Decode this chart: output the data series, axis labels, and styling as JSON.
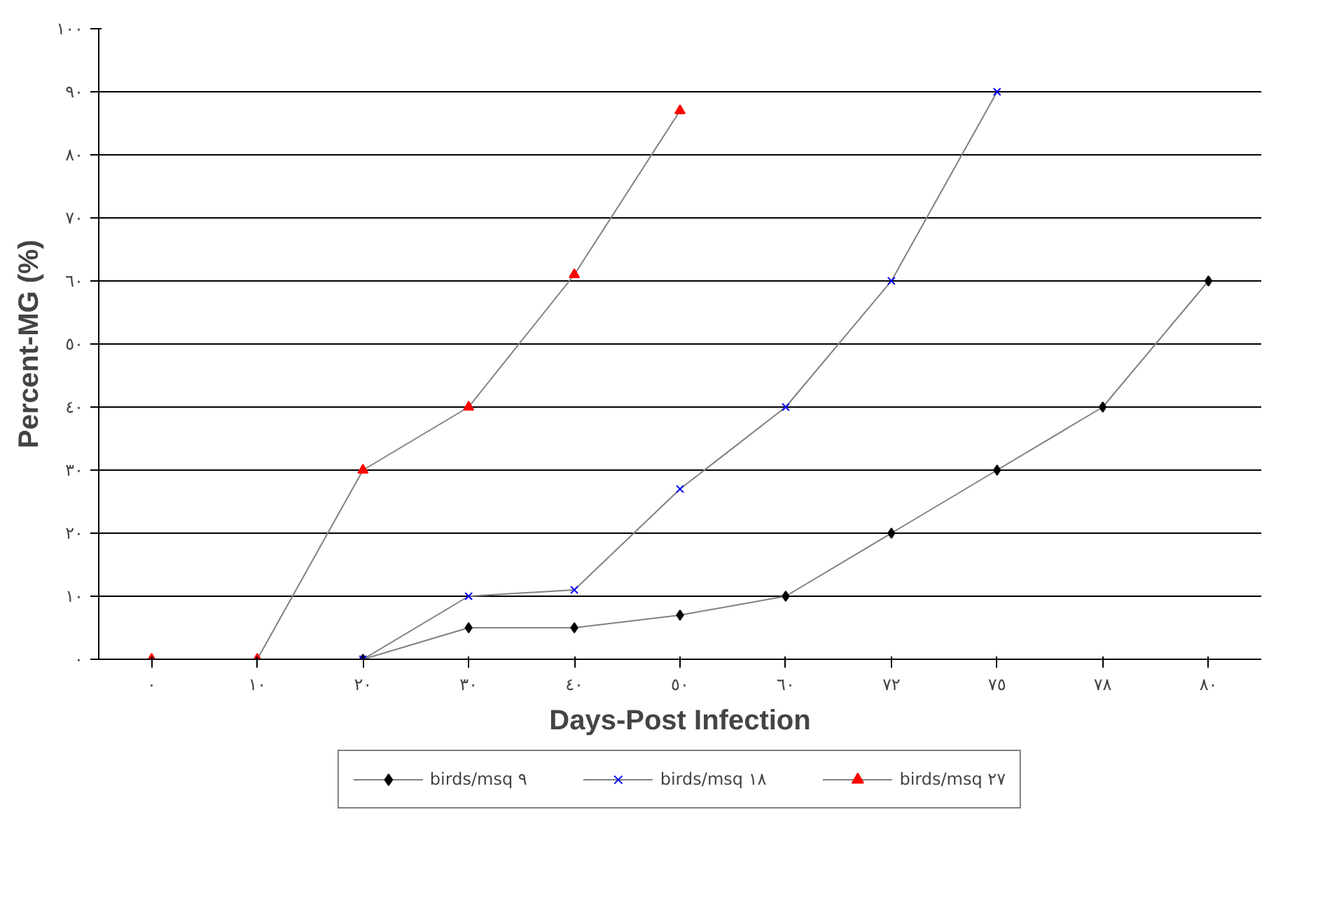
{
  "chart_data": {
    "type": "line",
    "xlabel": "Days-Post Infection",
    "ylabel": "Percent-MG (%)",
    "categories": [
      "٠",
      "١٠",
      "٢٠",
      "٣٠",
      "٤٠",
      "٥٠",
      "٦٠",
      "٧٢",
      "٧٥",
      "٧٨",
      "٨٠"
    ],
    "ylim": [
      0,
      100
    ],
    "yticks": [
      {
        "value": 0,
        "label": "٠"
      },
      {
        "value": 10,
        "label": "١٠"
      },
      {
        "value": 20,
        "label": "٢٠"
      },
      {
        "value": 30,
        "label": "٣٠"
      },
      {
        "value": 40,
        "label": "٤٠"
      },
      {
        "value": 50,
        "label": "٥٠"
      },
      {
        "value": 60,
        "label": "٦٠"
      },
      {
        "value": 70,
        "label": "٧٠"
      },
      {
        "value": 80,
        "label": "٨٠"
      },
      {
        "value": 90,
        "label": "٩٠"
      },
      {
        "value": 100,
        "label": "١٠٠"
      }
    ],
    "series": [
      {
        "name": "birds/msq ٩",
        "color": "#000000",
        "marker": "diamond",
        "values": [
          null,
          null,
          0,
          5,
          5,
          7,
          10,
          20,
          30,
          40,
          60
        ]
      },
      {
        "name": "birds/msq ١٨",
        "color": "#0000ff",
        "marker": "cross",
        "values": [
          null,
          null,
          0,
          10,
          11,
          27,
          40,
          60,
          90,
          null,
          null
        ]
      },
      {
        "name": "birds/msq ٢٧",
        "color": "#ff0000",
        "marker": "triangle",
        "values": [
          0,
          0,
          30,
          40,
          61,
          87,
          null,
          null,
          null,
          null,
          null
        ]
      }
    ],
    "grid": "y",
    "legend": "bottom",
    "line_style": "solid"
  }
}
